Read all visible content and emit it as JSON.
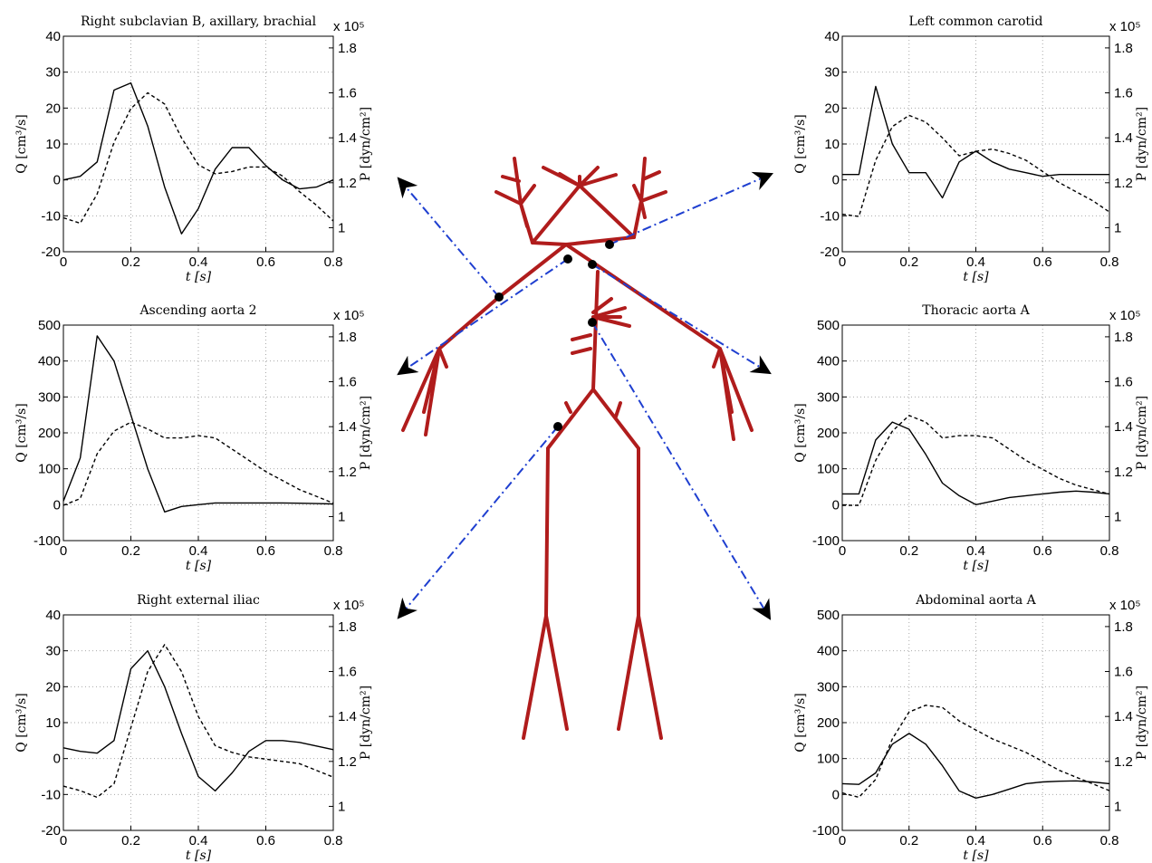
{
  "chart_data": [
    {
      "type": "line",
      "title": "Right subclavian B, axillary, brachial",
      "xlabel": "t [s]",
      "ylabel": "Q [cm³/s]",
      "y2label": "P [dyn/cm²]",
      "y2_scale": "x 10⁵",
      "x": [
        0,
        0.05,
        0.1,
        0.15,
        0.2,
        0.25,
        0.3,
        0.35,
        0.4,
        0.45,
        0.5,
        0.55,
        0.6,
        0.65,
        0.7,
        0.75,
        0.8
      ],
      "xlim": [
        0,
        0.8
      ],
      "xticks": [
        0,
        0.2,
        0.4,
        0.6,
        0.8
      ],
      "ylim": [
        -20,
        40
      ],
      "yticks": [
        -20,
        -10,
        0,
        10,
        20,
        30,
        40
      ],
      "y2lim": [
        0.893,
        1.852
      ],
      "y2ticks": [
        1,
        1.2,
        1.4,
        1.6,
        1.8
      ],
      "grid": true,
      "series": [
        {
          "color": "#000000",
          "style": "solid",
          "values": [
            0,
            1,
            5,
            25,
            27,
            15,
            -2,
            -15,
            -8,
            3,
            9,
            9,
            4,
            0,
            -2.5,
            -2,
            0
          ]
        },
        {
          "color": "#000000",
          "style": "dashed",
          "axis": "y2",
          "values": [
            1.044,
            1.02,
            1.15,
            1.38,
            1.53,
            1.6,
            1.55,
            1.4,
            1.28,
            1.24,
            1.25,
            1.27,
            1.27,
            1.23,
            1.16,
            1.1,
            1.03
          ]
        }
      ]
    },
    {
      "type": "line",
      "title": "Ascending aorta 2",
      "xlabel": "t [s]",
      "ylabel": "Q [cm³/s]",
      "y2label": "P [dyn/cm²]",
      "y2_scale": "x 10⁵",
      "x": [
        0,
        0.05,
        0.1,
        0.15,
        0.2,
        0.25,
        0.3,
        0.35,
        0.4,
        0.45,
        0.5,
        0.55,
        0.6,
        0.65,
        0.7,
        0.75,
        0.8
      ],
      "xlim": [
        0,
        0.8
      ],
      "xticks": [
        0,
        0.2,
        0.4,
        0.6,
        0.8
      ],
      "ylim": [
        -100,
        500
      ],
      "yticks": [
        -100,
        0,
        100,
        200,
        300,
        400,
        500
      ],
      "y2lim": [
        0.893,
        1.852
      ],
      "y2ticks": [
        1,
        1.2,
        1.4,
        1.6,
        1.8
      ],
      "grid": true,
      "series": [
        {
          "color": "#000000",
          "style": "solid",
          "values": [
            10,
            130,
            470,
            400,
            250,
            100,
            -20,
            -5,
            0,
            5,
            5,
            5,
            5,
            5,
            4,
            3,
            2
          ]
        },
        {
          "color": "#000000",
          "style": "dashed",
          "axis": "y2",
          "values": [
            1.05,
            1.08,
            1.28,
            1.38,
            1.42,
            1.39,
            1.35,
            1.35,
            1.36,
            1.35,
            1.3,
            1.25,
            1.2,
            1.16,
            1.12,
            1.09,
            1.06
          ]
        }
      ]
    },
    {
      "type": "line",
      "title": "Right external iliac",
      "xlabel": "t [s]",
      "ylabel": "Q [cm³/s]",
      "y2label": "P [dyn/cm²]",
      "y2_scale": "x 10⁵",
      "x": [
        0,
        0.05,
        0.1,
        0.15,
        0.2,
        0.25,
        0.3,
        0.35,
        0.4,
        0.45,
        0.5,
        0.55,
        0.6,
        0.65,
        0.7,
        0.75,
        0.8
      ],
      "xlim": [
        0,
        0.8
      ],
      "xticks": [
        0,
        0.2,
        0.4,
        0.6,
        0.8
      ],
      "ylim": [
        -20,
        40
      ],
      "yticks": [
        -20,
        -10,
        0,
        10,
        20,
        30,
        40
      ],
      "y2lim": [
        0.893,
        1.852
      ],
      "y2ticks": [
        1,
        1.2,
        1.4,
        1.6,
        1.8
      ],
      "grid": true,
      "series": [
        {
          "color": "#000000",
          "style": "solid",
          "values": [
            3,
            2,
            1.5,
            5,
            25,
            30,
            20,
            7,
            -5,
            -9,
            -4,
            2,
            5,
            5,
            4.5,
            3.5,
            2.5
          ]
        },
        {
          "color": "#000000",
          "style": "dashed",
          "axis": "y2",
          "values": [
            1.09,
            1.07,
            1.04,
            1.1,
            1.35,
            1.6,
            1.72,
            1.6,
            1.4,
            1.27,
            1.24,
            1.22,
            1.21,
            1.2,
            1.19,
            1.16,
            1.13
          ]
        }
      ]
    },
    {
      "type": "line",
      "title": "Left common carotid",
      "xlabel": "t [s]",
      "ylabel": "Q [cm³/s]",
      "y2label": "P [dyn/cm²]",
      "y2_scale": "x 10⁵",
      "x": [
        0,
        0.05,
        0.1,
        0.15,
        0.2,
        0.25,
        0.3,
        0.35,
        0.4,
        0.45,
        0.5,
        0.55,
        0.6,
        0.65,
        0.7,
        0.75,
        0.8
      ],
      "xlim": [
        0,
        0.8
      ],
      "xticks": [
        0,
        0.2,
        0.4,
        0.6,
        0.8
      ],
      "ylim": [
        -20,
        40
      ],
      "yticks": [
        -20,
        -10,
        0,
        10,
        20,
        30,
        40
      ],
      "y2lim": [
        0.893,
        1.852
      ],
      "y2ticks": [
        1,
        1.2,
        1.4,
        1.6,
        1.8
      ],
      "grid": true,
      "series": [
        {
          "color": "#000000",
          "style": "solid",
          "values": [
            1.5,
            1.5,
            26,
            10,
            2,
            2,
            -5,
            5,
            8,
            5,
            3,
            2,
            1,
            1.5,
            1.5,
            1.5,
            1.5
          ]
        },
        {
          "color": "#000000",
          "style": "dashed",
          "axis": "y2",
          "values": [
            1.06,
            1.05,
            1.3,
            1.45,
            1.5,
            1.47,
            1.4,
            1.32,
            1.34,
            1.35,
            1.33,
            1.3,
            1.25,
            1.2,
            1.16,
            1.12,
            1.07
          ]
        }
      ]
    },
    {
      "type": "line",
      "title": "Thoracic aorta A",
      "xlabel": "t [s]",
      "ylabel": "Q [cm³/s]",
      "y2label": "P [dyn/cm²]",
      "y2_scale": "x 10⁵",
      "x": [
        0,
        0.05,
        0.1,
        0.15,
        0.2,
        0.25,
        0.3,
        0.35,
        0.4,
        0.45,
        0.5,
        0.55,
        0.6,
        0.65,
        0.7,
        0.75,
        0.8
      ],
      "xlim": [
        0,
        0.8
      ],
      "xticks": [
        0,
        0.2,
        0.4,
        0.6,
        0.8
      ],
      "ylim": [
        -100,
        500
      ],
      "yticks": [
        -100,
        0,
        100,
        200,
        300,
        400,
        500
      ],
      "y2lim": [
        0.893,
        1.852
      ],
      "y2ticks": [
        1,
        1.2,
        1.4,
        1.6,
        1.8
      ],
      "grid": true,
      "series": [
        {
          "color": "#000000",
          "style": "solid",
          "values": [
            30,
            30,
            180,
            230,
            210,
            140,
            60,
            25,
            0,
            10,
            20,
            25,
            30,
            35,
            38,
            35,
            30
          ]
        },
        {
          "color": "#000000",
          "style": "dashed",
          "axis": "y2",
          "values": [
            1.05,
            1.05,
            1.25,
            1.38,
            1.45,
            1.42,
            1.35,
            1.36,
            1.36,
            1.35,
            1.3,
            1.25,
            1.21,
            1.17,
            1.14,
            1.12,
            1.1
          ]
        }
      ]
    },
    {
      "type": "line",
      "title": "Abdominal aorta A",
      "xlabel": "t [s]",
      "ylabel": "Q [cm³/s]",
      "y2label": "P [dyn/cm²]",
      "y2_scale": "x 10⁵",
      "x": [
        0,
        0.05,
        0.1,
        0.15,
        0.2,
        0.25,
        0.3,
        0.35,
        0.4,
        0.45,
        0.5,
        0.55,
        0.6,
        0.65,
        0.7,
        0.75,
        0.8
      ],
      "xlim": [
        0,
        0.8
      ],
      "xticks": [
        0,
        0.2,
        0.4,
        0.6,
        0.8
      ],
      "ylim": [
        -100,
        500
      ],
      "yticks": [
        -100,
        0,
        100,
        200,
        300,
        400,
        500
      ],
      "y2lim": [
        0.893,
        1.852
      ],
      "y2ticks": [
        1,
        1.2,
        1.4,
        1.6,
        1.8
      ],
      "grid": true,
      "series": [
        {
          "color": "#000000",
          "style": "solid",
          "values": [
            30,
            28,
            60,
            140,
            170,
            140,
            80,
            10,
            -10,
            0,
            15,
            30,
            35,
            37,
            38,
            35,
            30
          ]
        },
        {
          "color": "#000000",
          "style": "dashed",
          "axis": "y2",
          "values": [
            1.06,
            1.04,
            1.12,
            1.3,
            1.42,
            1.45,
            1.44,
            1.38,
            1.34,
            1.3,
            1.27,
            1.24,
            1.2,
            1.16,
            1.13,
            1.1,
            1.07
          ]
        }
      ]
    }
  ]
}
